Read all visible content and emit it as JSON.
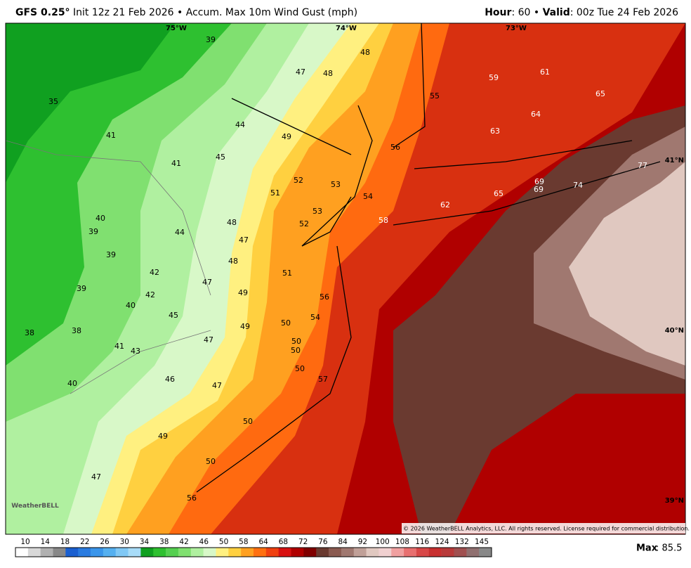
{
  "header": {
    "model": "GFS 0.25°",
    "details": "Init 12z 21 Feb 2026 • Accum. Max 10m Wind Gust (mph)",
    "hour_label": "Hour",
    "hour_value": ": 60 • ",
    "valid_label": "Valid",
    "valid_value": ": 00z Tue 24 Feb 2026"
  },
  "map": {
    "longitudes": [
      "75°W",
      "74°W",
      "73°W"
    ],
    "latitudes": [
      "41°N",
      "40°N",
      "39°N"
    ],
    "values": [
      "39",
      "48",
      "47",
      "48",
      "59",
      "61",
      "55",
      "65",
      "35",
      "64",
      "44",
      "63",
      "49",
      "56",
      "41",
      "45",
      "41",
      "77",
      "52",
      "53",
      "69",
      "69",
      "74",
      "51",
      "54",
      "65",
      "62",
      "53",
      "40",
      "48",
      "52",
      "58",
      "39",
      "44",
      "47",
      "39",
      "48",
      "42",
      "51",
      "47",
      "39",
      "42",
      "49",
      "56",
      "40",
      "45",
      "54",
      "50",
      "49",
      "38",
      "38",
      "47",
      "50",
      "41",
      "43",
      "50",
      "50",
      "57",
      "46",
      "40",
      "47",
      "50",
      "49",
      "50",
      "47",
      "56"
    ],
    "copyright": "© 2026 WeatherBELL Analytics, LLC. All rights reserved. License required for commercial distribution.",
    "logo": "WeatherBELL"
  },
  "colorbar": {
    "ticks": [
      10,
      14,
      18,
      22,
      26,
      30,
      34,
      38,
      42,
      46,
      50,
      58,
      64,
      68,
      72,
      76,
      84,
      92,
      100,
      108,
      116,
      124,
      132,
      145
    ],
    "colors": [
      "#ffffff",
      "#d8d8d8",
      "#b0b0b0",
      "#888888",
      "#1a5fd0",
      "#2a7be0",
      "#3a95ea",
      "#55b0f0",
      "#80c8f5",
      "#a8dcf8",
      "#10a020",
      "#2ec030",
      "#55d050",
      "#80e070",
      "#b0f0a0",
      "#d8f8c8",
      "#fff080",
      "#ffd040",
      "#ffa020",
      "#ff7010",
      "#f04010",
      "#d81010",
      "#b00000",
      "#800000",
      "#6a3a30",
      "#8a5a50",
      "#a07870",
      "#c0a098",
      "#e0c8c0",
      "#f0d0d0",
      "#f0a0a0",
      "#e87070",
      "#d84848",
      "#c83030",
      "#b83a3a",
      "#a05050",
      "#907070",
      "#888888"
    ],
    "max_label": "Max",
    "max_value": ": 85.5"
  }
}
